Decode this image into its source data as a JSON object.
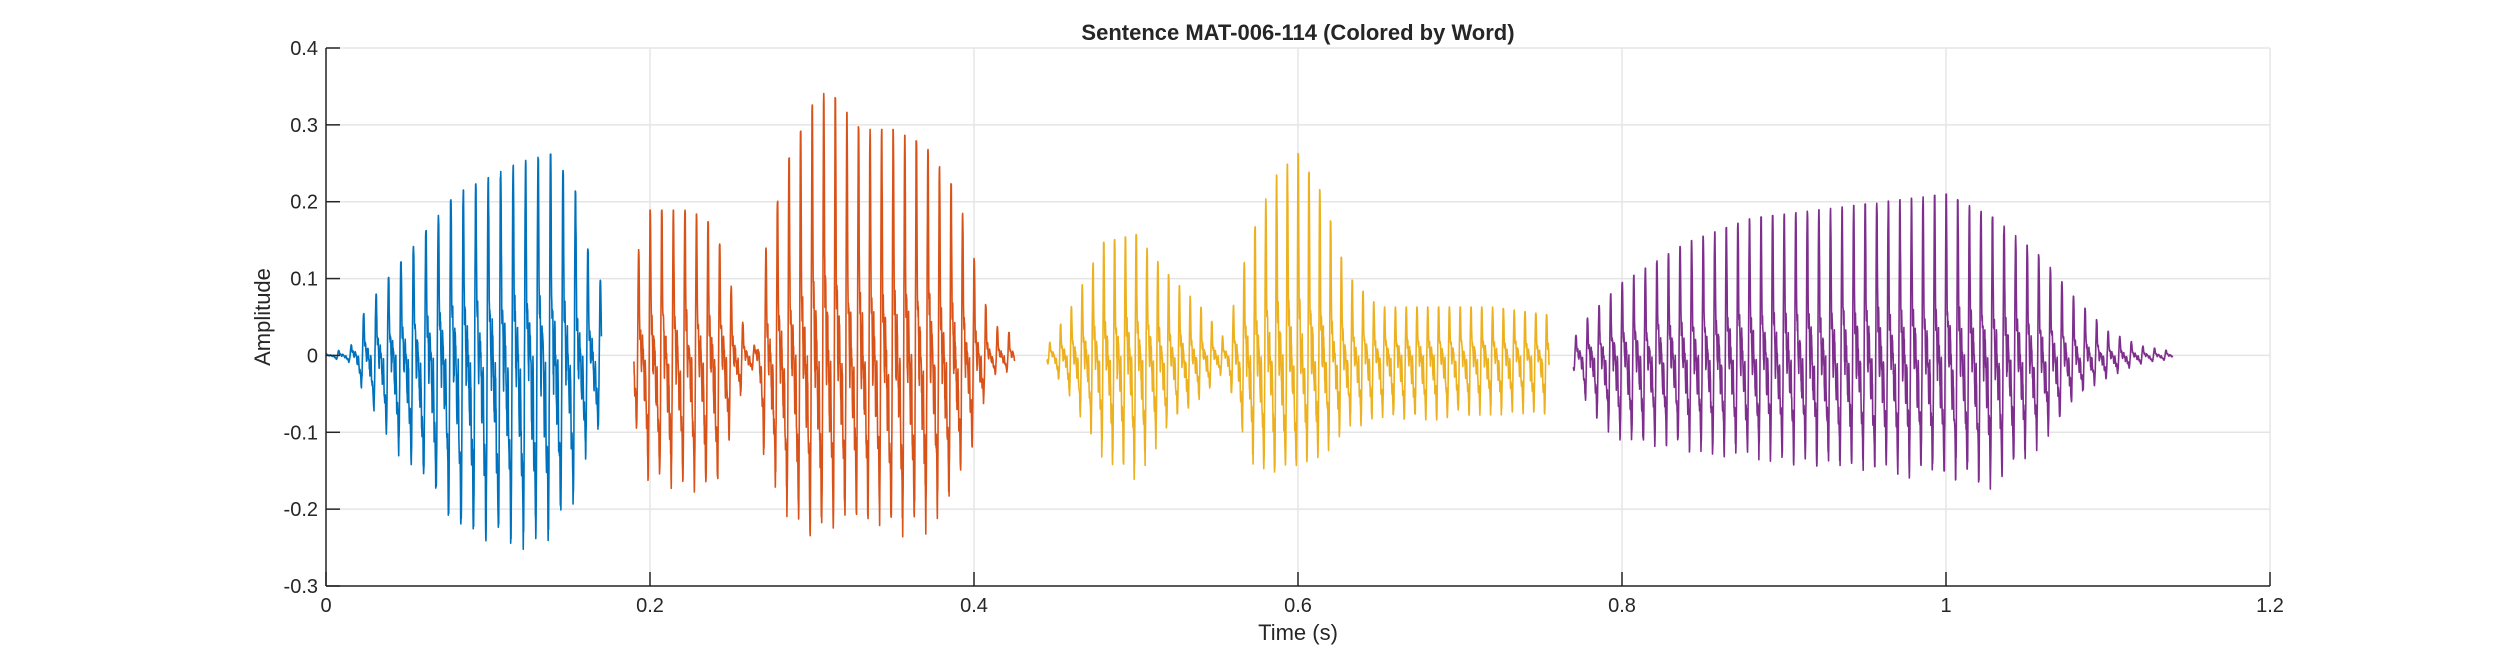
{
  "chart_data": {
    "type": "line",
    "title": "Sentence MAT-006-114 (Colored by Word)",
    "xlabel": "Time (s)",
    "ylabel": "Amplitude",
    "xlim": [
      0,
      1.2
    ],
    "ylim": [
      -0.3,
      0.4
    ],
    "xticks": [
      0,
      0.2,
      0.4,
      0.6,
      0.8,
      1,
      1.2
    ],
    "xtick_labels": [
      "0",
      "0.2",
      "0.4",
      "0.6",
      "0.8",
      "1",
      "1.2"
    ],
    "yticks": [
      -0.3,
      -0.2,
      -0.1,
      0,
      0.1,
      0.2,
      0.3,
      0.4
    ],
    "ytick_labels": [
      "-0.3",
      "-0.2",
      "-0.1",
      "0",
      "0.1",
      "0.2",
      "0.3",
      "0.4"
    ],
    "grid": true,
    "series": [
      {
        "color": "#0072BD",
        "x_range": [
          0.0,
          0.17
        ],
        "envelope": [
          [
            0.0,
            0.002
          ],
          [
            0.015,
            0.01
          ],
          [
            0.025,
            0.06
          ],
          [
            0.04,
            0.1
          ],
          [
            0.06,
            0.15
          ],
          [
            0.08,
            0.2
          ],
          [
            0.1,
            0.22
          ],
          [
            0.12,
            0.24
          ],
          [
            0.14,
            0.25
          ],
          [
            0.155,
            0.2
          ],
          [
            0.16,
            0.14
          ],
          [
            0.17,
            0.09
          ]
        ],
        "neg_envelope": [
          [
            0.0,
            -0.002
          ],
          [
            0.015,
            -0.01
          ],
          [
            0.025,
            -0.06
          ],
          [
            0.04,
            -0.12
          ],
          [
            0.06,
            -0.18
          ],
          [
            0.08,
            -0.24
          ],
          [
            0.1,
            -0.26
          ],
          [
            0.12,
            -0.27
          ],
          [
            0.14,
            -0.25
          ],
          [
            0.155,
            -0.2
          ],
          [
            0.16,
            -0.14
          ],
          [
            0.17,
            -0.09
          ]
        ],
        "pitch_hz": 130
      },
      {
        "color": "#D95319",
        "x_range": [
          0.19,
          0.425
        ],
        "envelope": [
          [
            0.19,
            0.11
          ],
          [
            0.2,
            0.18
          ],
          [
            0.225,
            0.18
          ],
          [
            0.24,
            0.16
          ],
          [
            0.255,
            0.05
          ],
          [
            0.265,
            0.01
          ],
          [
            0.27,
            0.12
          ],
          [
            0.285,
            0.24
          ],
          [
            0.3,
            0.31
          ],
          [
            0.31,
            0.33
          ],
          [
            0.33,
            0.28
          ],
          [
            0.35,
            0.28
          ],
          [
            0.37,
            0.26
          ],
          [
            0.39,
            0.2
          ],
          [
            0.4,
            0.12
          ],
          [
            0.41,
            0.04
          ],
          [
            0.425,
            0.025
          ]
        ],
        "neg_envelope": [
          [
            0.19,
            -0.09
          ],
          [
            0.2,
            -0.18
          ],
          [
            0.225,
            -0.18
          ],
          [
            0.24,
            -0.2
          ],
          [
            0.255,
            -0.06
          ],
          [
            0.265,
            -0.01
          ],
          [
            0.27,
            -0.14
          ],
          [
            0.285,
            -0.22
          ],
          [
            0.3,
            -0.25
          ],
          [
            0.31,
            -0.24
          ],
          [
            0.33,
            -0.22
          ],
          [
            0.35,
            -0.25
          ],
          [
            0.37,
            -0.24
          ],
          [
            0.39,
            -0.18
          ],
          [
            0.4,
            -0.12
          ],
          [
            0.41,
            -0.03
          ],
          [
            0.425,
            -0.02
          ]
        ],
        "pitch_hz": 140
      },
      {
        "color": "#EDB120",
        "x_range": [
          0.445,
          0.755
        ],
        "envelope": [
          [
            0.445,
            0.01
          ],
          [
            0.46,
            0.06
          ],
          [
            0.48,
            0.14
          ],
          [
            0.5,
            0.15
          ],
          [
            0.52,
            0.1
          ],
          [
            0.54,
            0.06
          ],
          [
            0.555,
            0.02
          ],
          [
            0.57,
            0.14
          ],
          [
            0.585,
            0.22
          ],
          [
            0.6,
            0.25
          ],
          [
            0.615,
            0.2
          ],
          [
            0.63,
            0.1
          ],
          [
            0.65,
            0.06
          ],
          [
            0.68,
            0.06
          ],
          [
            0.72,
            0.06
          ],
          [
            0.755,
            0.05
          ]
        ],
        "neg_envelope": [
          [
            0.445,
            -0.01
          ],
          [
            0.46,
            -0.06
          ],
          [
            0.48,
            -0.14
          ],
          [
            0.5,
            -0.17
          ],
          [
            0.52,
            -0.1
          ],
          [
            0.54,
            -0.06
          ],
          [
            0.555,
            -0.02
          ],
          [
            0.57,
            -0.15
          ],
          [
            0.585,
            -0.17
          ],
          [
            0.6,
            -0.16
          ],
          [
            0.615,
            -0.14
          ],
          [
            0.63,
            -0.1
          ],
          [
            0.65,
            -0.09
          ],
          [
            0.68,
            -0.09
          ],
          [
            0.72,
            -0.08
          ],
          [
            0.755,
            -0.08
          ]
        ],
        "pitch_hz": 150
      },
      {
        "color": "#7E2F8E",
        "x_range": [
          0.77,
          1.14
        ],
        "envelope": [
          [
            0.77,
            0.02
          ],
          [
            0.78,
            0.05
          ],
          [
            0.8,
            0.09
          ],
          [
            0.84,
            0.14
          ],
          [
            0.88,
            0.17
          ],
          [
            0.92,
            0.18
          ],
          [
            0.96,
            0.19
          ],
          [
            1.0,
            0.2
          ],
          [
            1.03,
            0.17
          ],
          [
            1.06,
            0.12
          ],
          [
            1.08,
            0.07
          ],
          [
            1.1,
            0.03
          ],
          [
            1.12,
            0.012
          ],
          [
            1.14,
            0.005
          ]
        ],
        "neg_envelope": [
          [
            0.77,
            -0.02
          ],
          [
            0.78,
            -0.08
          ],
          [
            0.8,
            -0.12
          ],
          [
            0.84,
            -0.13
          ],
          [
            0.88,
            -0.14
          ],
          [
            0.92,
            -0.15
          ],
          [
            0.96,
            -0.16
          ],
          [
            1.0,
            -0.17
          ],
          [
            1.03,
            -0.18
          ],
          [
            1.06,
            -0.12
          ],
          [
            1.08,
            -0.06
          ],
          [
            1.1,
            -0.03
          ],
          [
            1.12,
            -0.012
          ],
          [
            1.14,
            -0.005
          ]
        ],
        "pitch_hz": 140
      }
    ]
  }
}
